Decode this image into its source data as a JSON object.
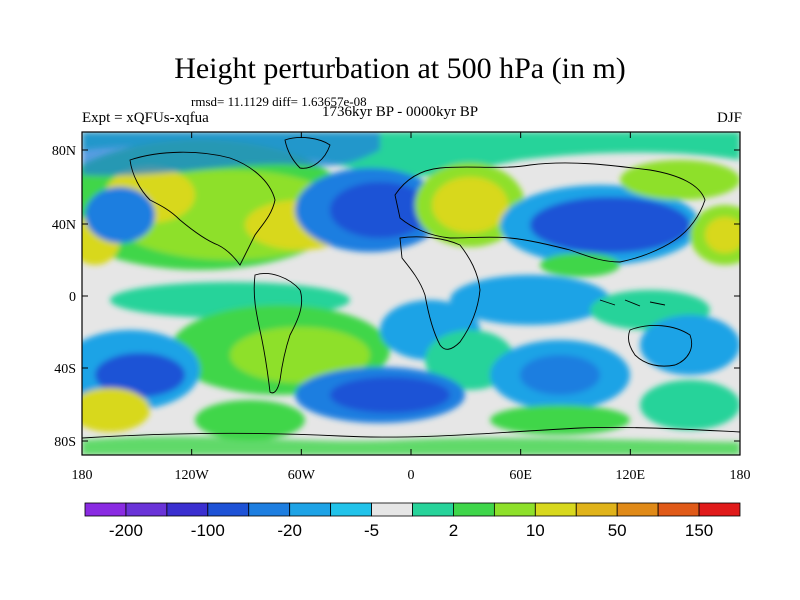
{
  "title": "Height perturbation at 500 hPa (in m)",
  "stats": "rmsd= 11.1129 diff= 1.63657e-08",
  "experiment": "Expt = xQFUs-xqfua",
  "period": "1736kyr BP - 0000kyr BP",
  "season": "DJF",
  "lat_ticks": [
    "80N",
    "40N",
    "0",
    "40S",
    "80S"
  ],
  "lon_ticks": [
    "180",
    "120W",
    "60W",
    "0",
    "60E",
    "120E",
    "180"
  ],
  "colorbar": {
    "labels": [
      "-200",
      "-100",
      "-20",
      "-5",
      "2",
      "10",
      "50",
      "150"
    ],
    "colors": [
      "#8a2be2",
      "#6a33d8",
      "#3b2fd0",
      "#1e52d6",
      "#1e7ee0",
      "#1ea3e6",
      "#22c3ea",
      "#e6e6e6",
      "#27d39a",
      "#3fd64a",
      "#8ee02a",
      "#d8d81e",
      "#e0b31a",
      "#e08a18",
      "#e05a18",
      "#e01a1a"
    ]
  }
}
